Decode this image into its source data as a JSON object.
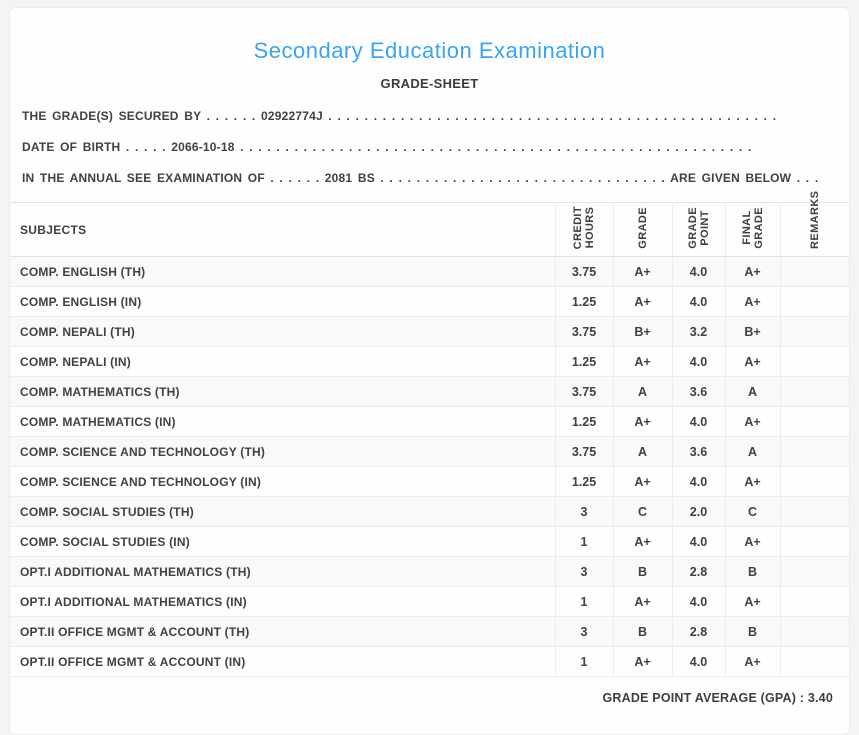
{
  "header": {
    "title": "Secondary Education Examination",
    "subtitle": "GRADE-SHEET"
  },
  "info": {
    "grades_secured_line": "THE GRADE(S) SECURED BY . . . . . . 02922774J . . . . . . . . . . . . . . . . . . . . . . . . . . . . . . . . . . . . . . . . . . . . . . . . . .",
    "date_of_birth_line": "DATE OF BIRTH . . . . . 2066-10-18 . . . . . . . . . . . . . . . . . . . . . . . . . . . . . . . . . . . . . . . . . . . . . . . . . . . . . . . . .",
    "examination_line": "IN THE ANNUAL SEE EXAMINATION OF . . . . . . 2081 BS . . . . . . . . . . . . . . . . . . . . . . . . . . . . . . . . ARE GIVEN BELOW . . ."
  },
  "table": {
    "columns": [
      "SUBJECTS",
      "CREDIT\nHOURS",
      "GRADE",
      "GRADE\nPOINT",
      "FINAL\nGRADE",
      "REMARKS"
    ],
    "rows": [
      {
        "subject": "COMP. ENGLISH (TH)",
        "credit_hours": "3.75",
        "grade": "A+",
        "grade_point": "4.0",
        "final_grade": "A+",
        "remarks": ""
      },
      {
        "subject": "COMP. ENGLISH (IN)",
        "credit_hours": "1.25",
        "grade": "A+",
        "grade_point": "4.0",
        "final_grade": "A+",
        "remarks": ""
      },
      {
        "subject": "COMP. NEPALI (TH)",
        "credit_hours": "3.75",
        "grade": "B+",
        "grade_point": "3.2",
        "final_grade": "B+",
        "remarks": ""
      },
      {
        "subject": "COMP. NEPALI (IN)",
        "credit_hours": "1.25",
        "grade": "A+",
        "grade_point": "4.0",
        "final_grade": "A+",
        "remarks": ""
      },
      {
        "subject": "COMP. MATHEMATICS (TH)",
        "credit_hours": "3.75",
        "grade": "A",
        "grade_point": "3.6",
        "final_grade": "A",
        "remarks": ""
      },
      {
        "subject": "COMP. MATHEMATICS (IN)",
        "credit_hours": "1.25",
        "grade": "A+",
        "grade_point": "4.0",
        "final_grade": "A+",
        "remarks": ""
      },
      {
        "subject": "COMP. SCIENCE AND TECHNOLOGY (TH)",
        "credit_hours": "3.75",
        "grade": "A",
        "grade_point": "3.6",
        "final_grade": "A",
        "remarks": ""
      },
      {
        "subject": "COMP. SCIENCE AND TECHNOLOGY (IN)",
        "credit_hours": "1.25",
        "grade": "A+",
        "grade_point": "4.0",
        "final_grade": "A+",
        "remarks": ""
      },
      {
        "subject": "COMP. SOCIAL STUDIES (TH)",
        "credit_hours": "3",
        "grade": "C",
        "grade_point": "2.0",
        "final_grade": "C",
        "remarks": ""
      },
      {
        "subject": "COMP. SOCIAL STUDIES (IN)",
        "credit_hours": "1",
        "grade": "A+",
        "grade_point": "4.0",
        "final_grade": "A+",
        "remarks": ""
      },
      {
        "subject": "OPT.I ADDITIONAL MATHEMATICS (TH)",
        "credit_hours": "3",
        "grade": "B",
        "grade_point": "2.8",
        "final_grade": "B",
        "remarks": ""
      },
      {
        "subject": "OPT.I ADDITIONAL MATHEMATICS (IN)",
        "credit_hours": "1",
        "grade": "A+",
        "grade_point": "4.0",
        "final_grade": "A+",
        "remarks": ""
      },
      {
        "subject": "OPT.II OFFICE MGMT & ACCOUNT (TH)",
        "credit_hours": "3",
        "grade": "B",
        "grade_point": "2.8",
        "final_grade": "B",
        "remarks": ""
      },
      {
        "subject": "OPT.II OFFICE MGMT & ACCOUNT (IN)",
        "credit_hours": "1",
        "grade": "A+",
        "grade_point": "4.0",
        "final_grade": "A+",
        "remarks": ""
      }
    ]
  },
  "footer": {
    "gpa_label": "GRADE POINT AVERAGE (GPA) :",
    "gpa_value": "3.40"
  },
  "colors": {
    "accent_blue": "#38a4f5",
    "text": "#414141",
    "stripe": "#f9f9f9",
    "border": "#ececec",
    "page_background": "#f4f4f6"
  }
}
